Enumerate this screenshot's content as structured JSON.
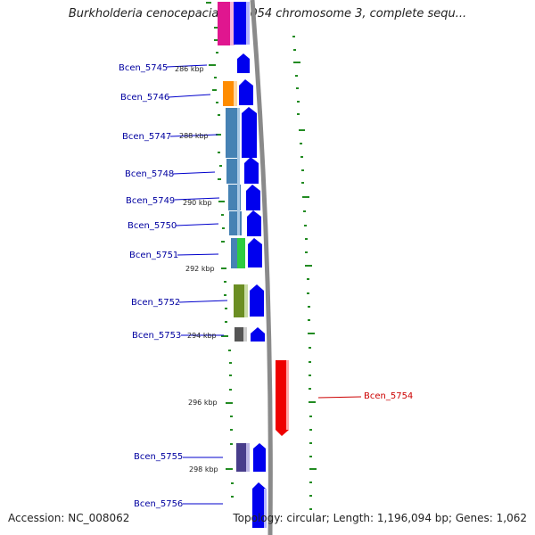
{
  "title": "Burkholderia cenocepacia AU 1054 chromosome 3, complete sequ...",
  "footer": {
    "accession": "Accession: NC_008062",
    "info": "Topology: circular; Length: 1,196,094 bp; Genes: 1,062"
  },
  "scale_labels": [
    {
      "id": "s286",
      "text": "286 kbp"
    },
    {
      "id": "s288",
      "text": "288 kbp"
    },
    {
      "id": "s290",
      "text": "290 kbp"
    },
    {
      "id": "s292",
      "text": "292 kbp"
    },
    {
      "id": "s294",
      "text": "294 kbp"
    },
    {
      "id": "s296",
      "text": "296 kbp"
    },
    {
      "id": "s298",
      "text": "298 kbp"
    }
  ],
  "genes": [
    {
      "id": "g5745",
      "label": "Bcen_5745"
    },
    {
      "id": "g5746",
      "label": "Bcen_5746"
    },
    {
      "id": "g5747",
      "label": "Bcen_5747"
    },
    {
      "id": "g5748",
      "label": "Bcen_5748"
    },
    {
      "id": "g5749",
      "label": "Bcen_5749"
    },
    {
      "id": "g5750",
      "label": "Bcen_5750"
    },
    {
      "id": "g5751",
      "label": "Bcen_5751"
    },
    {
      "id": "g5752",
      "label": "Bcen_5752"
    },
    {
      "id": "g5753",
      "label": "Bcen_5753"
    },
    {
      "id": "g5754",
      "label": "Bcen_5754"
    },
    {
      "id": "g5755",
      "label": "Bcen_5755"
    },
    {
      "id": "g5756",
      "label": "Bcen_5756"
    }
  ],
  "colors": {
    "forward_strand": "#0000ee",
    "reverse_strand": "#ee0000",
    "backbone": "#8a8a8a",
    "gc_skew": "#228b22",
    "label_forward": "#0000a0",
    "label_reverse": "#cc0000"
  }
}
